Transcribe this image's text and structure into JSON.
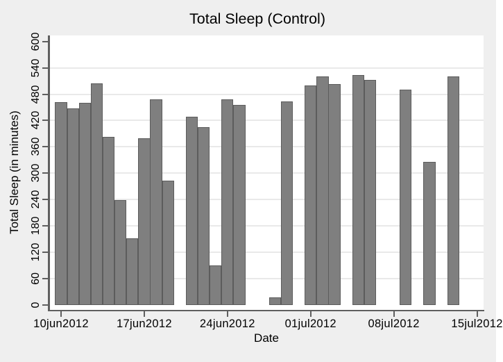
{
  "chart_data": {
    "type": "bar",
    "title": "Total Sleep (Control)",
    "xlabel": "Date",
    "ylabel": "Total Sleep (in minutes)",
    "ylim": [
      0,
      600
    ],
    "yticks": [
      0,
      60,
      120,
      180,
      240,
      300,
      360,
      420,
      480,
      540,
      600
    ],
    "grid": true,
    "legend": "none",
    "x_axis": {
      "tick_labels": [
        "10jun2012",
        "17jun2012",
        "24jun2012",
        "01jul2012",
        "08jul2012",
        "15jul2012"
      ],
      "tick_days": [
        0,
        7,
        14,
        21,
        28,
        35
      ]
    },
    "points": [
      {
        "date": "10jun2012",
        "day": 0,
        "value": 462
      },
      {
        "date": "11jun2012",
        "day": 1,
        "value": 447
      },
      {
        "date": "12jun2012",
        "day": 2,
        "value": 460
      },
      {
        "date": "13jun2012",
        "day": 3,
        "value": 504
      },
      {
        "date": "14jun2012",
        "day": 4,
        "value": 383
      },
      {
        "date": "15jun2012",
        "day": 5,
        "value": 238
      },
      {
        "date": "16jun2012",
        "day": 6,
        "value": 152
      },
      {
        "date": "17jun2012",
        "day": 7,
        "value": 379
      },
      {
        "date": "18jun2012",
        "day": 8,
        "value": 469
      },
      {
        "date": "19jun2012",
        "day": 9,
        "value": 283
      },
      {
        "date": "21jun2012",
        "day": 11,
        "value": 428
      },
      {
        "date": "22jun2012",
        "day": 12,
        "value": 405
      },
      {
        "date": "23jun2012",
        "day": 13,
        "value": 90
      },
      {
        "date": "24jun2012",
        "day": 14,
        "value": 468
      },
      {
        "date": "25jun2012",
        "day": 15,
        "value": 456
      },
      {
        "date": "28jun2012",
        "day": 18,
        "value": 17
      },
      {
        "date": "29jun2012",
        "day": 19,
        "value": 463
      },
      {
        "date": "01jul2012",
        "day": 21,
        "value": 500
      },
      {
        "date": "02jul2012",
        "day": 22,
        "value": 520
      },
      {
        "date": "03jul2012",
        "day": 23,
        "value": 503
      },
      {
        "date": "05jul2012",
        "day": 25,
        "value": 523
      },
      {
        "date": "06jul2012",
        "day": 26,
        "value": 512
      },
      {
        "date": "09jul2012",
        "day": 29,
        "value": 490
      },
      {
        "date": "11jul2012",
        "day": 31,
        "value": 326
      },
      {
        "date": "13jul2012",
        "day": 33,
        "value": 520
      }
    ],
    "colors": {
      "canvas_bg": "#efefef",
      "plot_bg": "#ffffff",
      "bar_fill": "#7f7f7f",
      "bar_outline": "#5c5c5c",
      "axis": "#5f5f5f",
      "gridline": "#e9e9e9",
      "text": "#000000"
    }
  }
}
